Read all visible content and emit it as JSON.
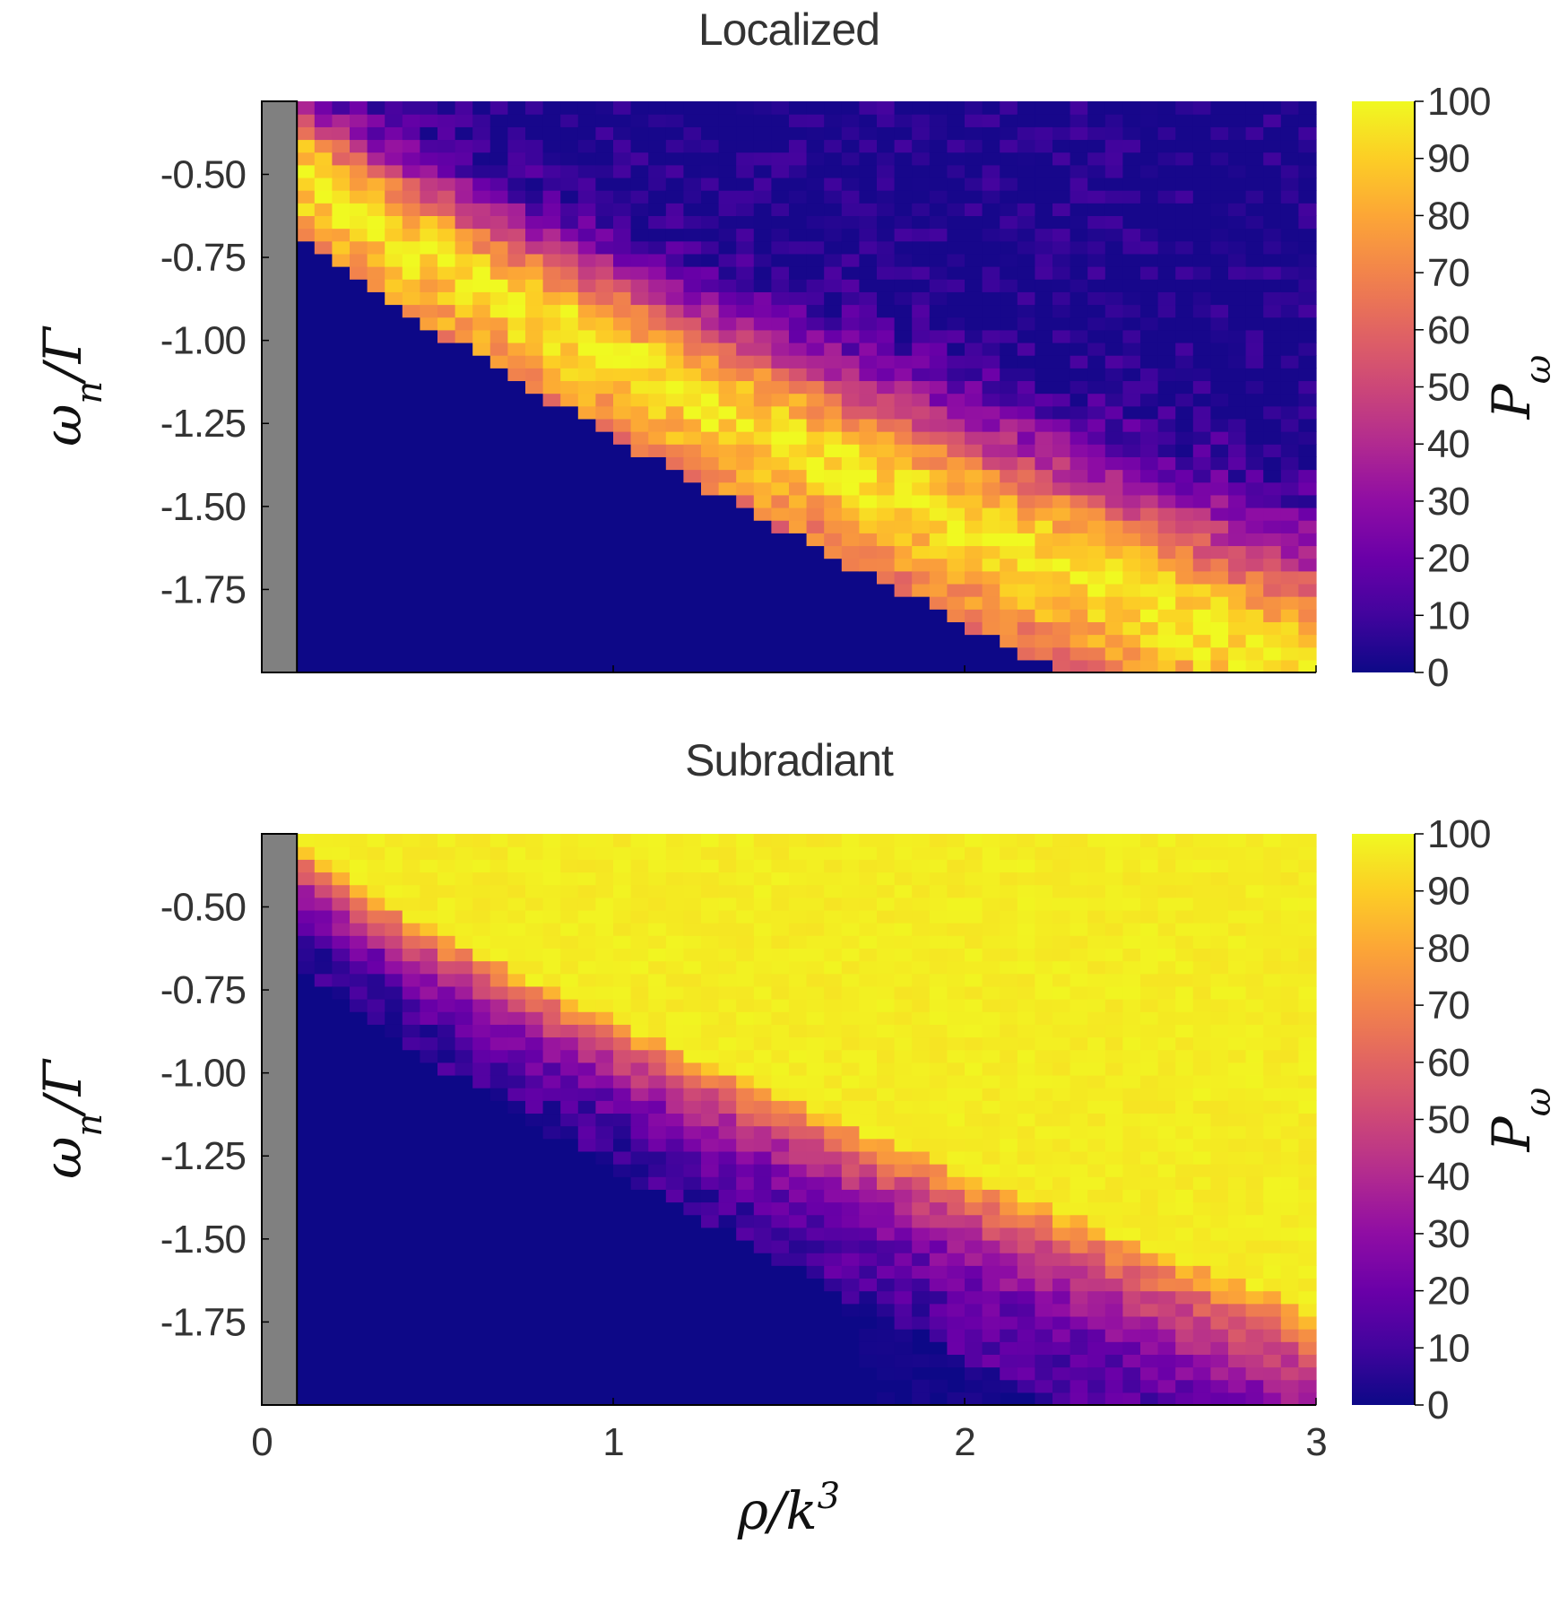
{
  "chart_data": [
    {
      "type": "heatmap",
      "title": "Localized",
      "xlabel": "ρ/k³",
      "ylabel": "ω_n/Γ",
      "xlim": [
        0,
        3
      ],
      "ylim": [
        -2.0,
        -0.28
      ],
      "yticks": [
        -0.5,
        -0.75,
        -1.0,
        -1.25,
        -1.5,
        -1.75
      ],
      "ytick_labels": [
        "-0.50",
        "-0.75",
        "-1.00",
        "-1.25",
        "-1.50",
        "-1.75"
      ],
      "xticks": [
        0,
        1,
        2,
        3
      ],
      "xtick_labels": [
        "",
        "",
        "",
        ""
      ],
      "masked_region_x": [
        0,
        0.1
      ],
      "masked_color": "#808080",
      "grid": {
        "nx": 58,
        "ny": 45,
        "x_start": 0.1,
        "x_end": 3.0
      },
      "colorbar": {
        "label": "P_ω",
        "range": [
          0,
          100
        ],
        "ticks": [
          0,
          10,
          20,
          30,
          40,
          50,
          60,
          70,
          80,
          90,
          100
        ],
        "tick_labels": [
          "0",
          "10",
          "20",
          "30",
          "40",
          "50",
          "60",
          "70",
          "80",
          "90",
          "100"
        ],
        "colormap": "plasma"
      },
      "description_of_pattern": {
        "below_band_value": 0,
        "band_peak_value": 95,
        "above_band_value": 5,
        "band_lower_edge": [
          [
            0.1,
            -0.72
          ],
          [
            0.5,
            -1.05
          ],
          [
            1.0,
            -1.35
          ],
          [
            1.5,
            -1.6
          ],
          [
            2.0,
            -1.85
          ],
          [
            2.2,
            -2.0
          ]
        ],
        "band_peak": [
          [
            0.1,
            -0.55
          ],
          [
            0.5,
            -0.85
          ],
          [
            1.0,
            -1.1
          ],
          [
            1.5,
            -1.3
          ],
          [
            2.0,
            -1.45
          ],
          [
            3.0,
            -1.7
          ]
        ],
        "band_upper_edge": [
          [
            0.1,
            -0.3
          ],
          [
            0.5,
            -0.6
          ],
          [
            1.0,
            -0.85
          ],
          [
            1.5,
            -0.95
          ],
          [
            2.0,
            -1.05
          ],
          [
            3.0,
            -1.25
          ]
        ]
      }
    },
    {
      "type": "heatmap",
      "title": "Subradiant",
      "xlabel": "ρ/k³",
      "ylabel": "ω_n/Γ",
      "xlim": [
        0,
        3
      ],
      "ylim": [
        -2.0,
        -0.28
      ],
      "yticks": [
        -0.5,
        -0.75,
        -1.0,
        -1.25,
        -1.5,
        -1.75
      ],
      "ytick_labels": [
        "-0.50",
        "-0.75",
        "-1.00",
        "-1.25",
        "-1.50",
        "-1.75"
      ],
      "xticks": [
        0,
        1,
        2,
        3
      ],
      "xtick_labels": [
        "0",
        "1",
        "2",
        "3"
      ],
      "masked_region_x": [
        0,
        0.1
      ],
      "masked_color": "#808080",
      "grid": {
        "nx": 58,
        "ny": 45,
        "x_start": 0.1,
        "x_end": 3.0
      },
      "colorbar": {
        "label": "P_ω",
        "range": [
          0,
          100
        ],
        "ticks": [
          0,
          10,
          20,
          30,
          40,
          50,
          60,
          70,
          80,
          90,
          100
        ],
        "tick_labels": [
          "0",
          "10",
          "20",
          "30",
          "40",
          "50",
          "60",
          "70",
          "80",
          "90",
          "100"
        ],
        "colormap": "plasma"
      },
      "description_of_pattern": {
        "top_value": 98,
        "transition_to_80": [
          [
            0.1,
            -0.35
          ],
          [
            0.5,
            -0.65
          ],
          [
            1.0,
            -0.85
          ],
          [
            1.5,
            -0.95
          ],
          [
            2.0,
            -1.05
          ],
          [
            3.0,
            -1.2
          ]
        ],
        "low_region_value_near_zero_edge": [
          [
            0.1,
            -0.72
          ],
          [
            0.5,
            -1.05
          ],
          [
            1.0,
            -1.35
          ],
          [
            1.5,
            -1.6
          ],
          [
            2.0,
            -1.85
          ],
          [
            2.2,
            -2.0
          ]
        ],
        "tail_values": 15
      }
    }
  ],
  "axis_labels": {
    "x": {
      "base": "ρ/k",
      "sup": "3"
    },
    "y_panel1": {
      "base": "ω",
      "sub": "n",
      "rest": "/Γ"
    },
    "y_panel2": {
      "base": "ω",
      "sub": "n",
      "rest": "/Γ"
    },
    "cb_panel1": {
      "base": "P",
      "sub": "ω"
    },
    "cb_panel2": {
      "base": "P",
      "sub": "ω"
    }
  }
}
